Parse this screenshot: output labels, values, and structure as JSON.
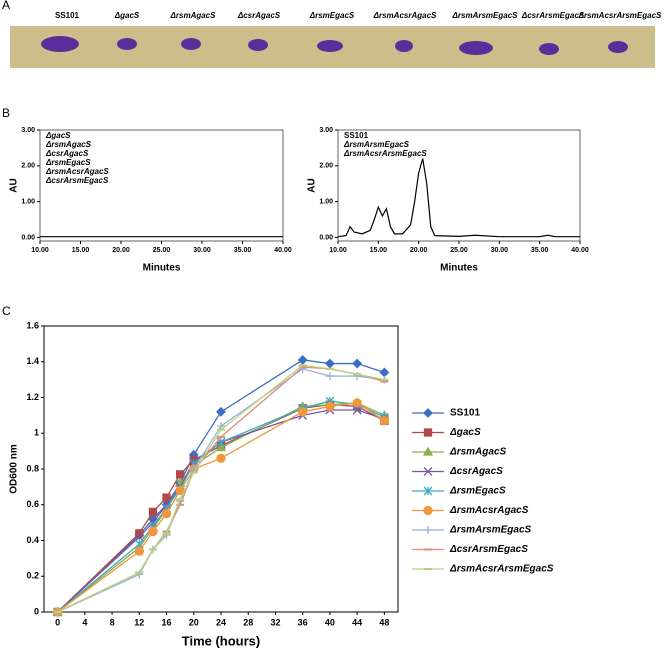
{
  "panel_a": {
    "label": "A",
    "strains": [
      "SS101",
      "ΔgacS",
      "ΔrsmAgacS",
      "ΔcsrAgacS",
      "ΔrsmEgacS",
      "ΔrsmAcsrAgacS",
      "ΔrsmArsmEgacS",
      "ΔcsrArsmEgacS",
      "ΔrsmAcsrArsmEgacS"
    ]
  },
  "panel_b_label": "B",
  "panel_c_label": "C",
  "chart_data": [
    {
      "type": "line",
      "y_label": "AU",
      "x_label": "Minutes",
      "xlim": [
        10,
        40
      ],
      "ylim": [
        -0.1,
        3
      ],
      "xticks": [
        {
          "value": 10,
          "label": "10.00"
        },
        {
          "value": 15,
          "label": "15.00"
        },
        {
          "value": 20,
          "label": "20.00"
        },
        {
          "value": 25,
          "label": "25.00"
        },
        {
          "value": 30,
          "label": "30.00"
        },
        {
          "value": 35,
          "label": "35.00"
        },
        {
          "value": 40,
          "label": "40.00"
        }
      ],
      "yticks": [
        {
          "value": 0,
          "label": "0.00"
        },
        {
          "value": 1,
          "label": "1.00"
        },
        {
          "value": 2,
          "label": "2.00"
        },
        {
          "value": 3,
          "label": "3.00"
        }
      ],
      "annotations": [
        "ΔgacS",
        "ΔrsmAgacS",
        "ΔcsrAgacS",
        "ΔrsmEgacS",
        "ΔrsmAcsrAgacS",
        "ΔcsrArsmEgacS"
      ],
      "color": "#000000",
      "x": [
        10,
        40
      ],
      "values": [
        0.02,
        0.02
      ]
    },
    {
      "type": "line",
      "y_label": "AU",
      "x_label": "Minutes",
      "xlim": [
        10,
        40
      ],
      "ylim": [
        -0.1,
        3
      ],
      "xticks": [
        {
          "value": 10,
          "label": "10.00"
        },
        {
          "value": 15,
          "label": "15.00"
        },
        {
          "value": 20,
          "label": "20.00"
        },
        {
          "value": 25,
          "label": "25.00"
        },
        {
          "value": 30,
          "label": "30.00"
        },
        {
          "value": 35,
          "label": "35.00"
        },
        {
          "value": 40,
          "label": "40.00"
        }
      ],
      "yticks": [
        {
          "value": 0,
          "label": "0.00"
        },
        {
          "value": 1,
          "label": "1.00"
        },
        {
          "value": 2,
          "label": "2.00"
        },
        {
          "value": 3,
          "label": "3.00"
        }
      ],
      "annotations": [
        "SS101",
        "ΔrsmArsmEgacS",
        "ΔrsmAcsrArsmEgacS"
      ],
      "color": "#000000",
      "x": [
        10,
        11,
        11.5,
        12,
        13,
        14,
        14.5,
        15,
        15.5,
        16,
        16.5,
        17,
        18,
        19,
        19.5,
        20,
        20.5,
        21,
        21.5,
        22,
        25,
        27,
        30,
        35,
        36,
        37,
        40
      ],
      "values": [
        0.02,
        0.05,
        0.3,
        0.15,
        0.1,
        0.2,
        0.5,
        0.85,
        0.6,
        0.8,
        0.3,
        0.1,
        0.1,
        0.35,
        1.0,
        1.8,
        2.2,
        1.5,
        0.3,
        0.05,
        0.03,
        0.06,
        0.02,
        0.02,
        0.06,
        0.02,
        0.02
      ]
    },
    {
      "type": "line",
      "y_label": "OD600 nm",
      "x_label": "Time (hours)",
      "xlim": [
        -2,
        50
      ],
      "ylim": [
        0,
        1.6
      ],
      "xticks": [
        0,
        4,
        8,
        12,
        16,
        20,
        24,
        28,
        32,
        36,
        40,
        44,
        48
      ],
      "yticks": [
        0,
        0.2,
        0.4,
        0.6,
        0.8,
        1,
        1.2,
        1.4,
        1.6
      ],
      "x": [
        0,
        12,
        14,
        16,
        18,
        20,
        24,
        36,
        40,
        44,
        48
      ],
      "series": [
        {
          "name": "SS101",
          "color": "#3a6fc4",
          "marker": "diamond",
          "values": [
            0,
            0.43,
            0.52,
            0.6,
            0.72,
            0.88,
            1.12,
            1.41,
            1.39,
            1.39,
            1.34
          ]
        },
        {
          "name": "ΔgacS",
          "color": "#b04a4a",
          "marker": "square",
          "values": [
            0,
            0.44,
            0.56,
            0.64,
            0.77,
            0.85,
            0.93,
            1.14,
            1.16,
            1.15,
            1.07
          ]
        },
        {
          "name": "ΔrsmAgacS",
          "color": "#8db04a",
          "marker": "triangle",
          "values": [
            0,
            0.36,
            0.47,
            0.57,
            0.72,
            0.82,
            0.92,
            1.15,
            1.16,
            1.17,
            1.1
          ]
        },
        {
          "name": "ΔcsrAgacS",
          "color": "#7b56a0",
          "marker": "x",
          "values": [
            0,
            0.42,
            0.5,
            0.6,
            0.7,
            0.84,
            0.95,
            1.1,
            1.13,
            1.13,
            1.08
          ]
        },
        {
          "name": "ΔrsmEgacS",
          "color": "#3ca9c4",
          "marker": "star",
          "values": [
            0,
            0.38,
            0.48,
            0.58,
            0.69,
            0.83,
            0.95,
            1.14,
            1.18,
            1.16,
            1.09
          ]
        },
        {
          "name": "ΔrsmAcsrAgacS",
          "color": "#f0963c",
          "marker": "circle",
          "values": [
            0,
            0.34,
            0.45,
            0.55,
            0.68,
            0.8,
            0.86,
            1.12,
            1.15,
            1.17,
            1.07
          ]
        },
        {
          "name": "ΔrsmArsmEgacS",
          "color": "#9ab2da",
          "marker": "plus",
          "values": [
            0,
            0.21,
            0.35,
            0.43,
            0.62,
            0.8,
            1.04,
            1.36,
            1.32,
            1.32,
            1.3
          ]
        },
        {
          "name": "ΔcsrArsmEgacS",
          "color": "#e08a80",
          "marker": "dash",
          "values": [
            0,
            0.22,
            0.35,
            0.45,
            0.6,
            0.79,
            0.98,
            1.37,
            1.36,
            1.33,
            1.29
          ]
        },
        {
          "name": "ΔrsmAcsrArsmEgacS",
          "color": "#b5d47a",
          "marker": "dash",
          "values": [
            0,
            0.22,
            0.35,
            0.44,
            0.63,
            0.78,
            1.02,
            1.38,
            1.36,
            1.33,
            1.3
          ]
        }
      ]
    }
  ]
}
